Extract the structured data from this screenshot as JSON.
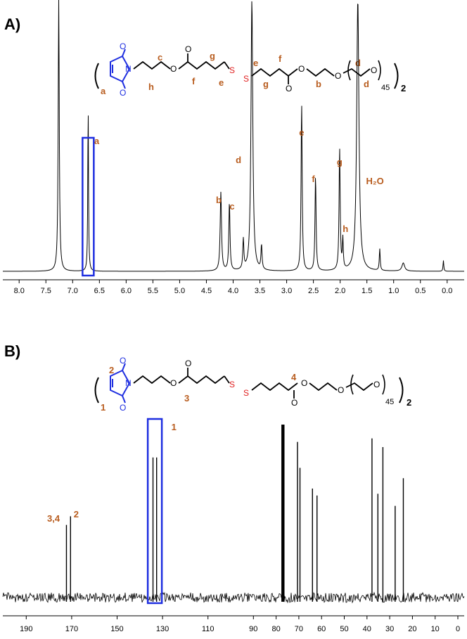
{
  "colors": {
    "spectrum": "#000000",
    "highlight_box": "#1f2fe0",
    "maleimide": "#1f2fe0",
    "disulfide": "#e01f1f",
    "annotation": "#b85c1e"
  },
  "panel_a": {
    "label": "A)",
    "structure": {
      "letters": [
        "a",
        "h",
        "c",
        "f",
        "e",
        "g",
        "e",
        "g",
        "f",
        "b",
        "d",
        "d"
      ],
      "repeat_subscript": "45",
      "dimer_subscript": "2"
    }
  },
  "panel_b": {
    "label": "B)",
    "structure": {
      "numbers": [
        "2",
        "1",
        "3",
        "4"
      ],
      "repeat_subscript": "45",
      "dimer_subscript": "2"
    }
  },
  "chart_data": [
    {
      "type": "line",
      "xlim": [
        8.2,
        -0.2
      ],
      "x_reversed": true,
      "ticks": [
        "8.0",
        "7.5",
        "7.0",
        "6.5",
        "6.0",
        "5.5",
        "5.0",
        "4.5",
        "4.0",
        "3.5",
        "3.0",
        "2.5",
        "2.0",
        "1.5",
        "1.0",
        "0.5",
        "0.0"
      ],
      "peaks": [
        {
          "x": 7.26,
          "height": 1.0,
          "width": 0.012
        },
        {
          "x": 6.71,
          "height": 0.61,
          "width": 0.008
        },
        {
          "x": 4.23,
          "height": 0.29,
          "width": 0.015
        },
        {
          "x": 4.07,
          "height": 0.25,
          "width": 0.013
        },
        {
          "x": 3.81,
          "height": 0.11,
          "width": 0.012
        },
        {
          "x": 3.65,
          "height": 1.0,
          "width": 0.02
        },
        {
          "x": 3.47,
          "height": 0.09,
          "width": 0.012
        },
        {
          "x": 2.72,
          "height": 0.62,
          "width": 0.012
        },
        {
          "x": 2.46,
          "height": 0.35,
          "width": 0.012
        },
        {
          "x": 2.01,
          "height": 0.45,
          "width": 0.012
        },
        {
          "x": 1.95,
          "height": 0.11,
          "width": 0.01
        },
        {
          "x": 1.67,
          "height": 1.0,
          "width": 0.025
        },
        {
          "x": 1.26,
          "height": 0.08,
          "width": 0.01
        },
        {
          "x": 0.82,
          "height": 0.03,
          "width": 0.03
        },
        {
          "x": 0.07,
          "height": 0.04,
          "width": 0.008
        }
      ],
      "annotations": [
        {
          "text": "a",
          "x": 6.55
        },
        {
          "text": "b",
          "x": 4.27
        },
        {
          "text": "c",
          "x": 4.02
        },
        {
          "text": "d",
          "x": 3.9
        },
        {
          "text": "e",
          "x": 2.72
        },
        {
          "text": "f",
          "x": 2.5
        },
        {
          "text": "g",
          "x": 2.01
        },
        {
          "text": "h",
          "x": 1.9
        },
        {
          "text": "H₂O",
          "x": 1.35
        }
      ]
    },
    {
      "type": "line",
      "xlim": [
        200,
        0
      ],
      "x_reversed": true,
      "ticks": [
        "190",
        "170",
        "150",
        "130",
        "110",
        "90",
        "80",
        "70",
        "60",
        "50",
        "40",
        "30",
        "20",
        "10",
        "0"
      ],
      "peaks": [
        {
          "x": 172.3,
          "height": 0.42
        },
        {
          "x": 170.5,
          "height": 0.47
        },
        {
          "x": 134.2,
          "height": 0.81
        },
        {
          "x": 132.6,
          "height": 0.81
        },
        {
          "x": 77.3,
          "height": 1.0
        },
        {
          "x": 76.7,
          "height": 1.0
        },
        {
          "x": 70.6,
          "height": 0.9
        },
        {
          "x": 69.5,
          "height": 0.75
        },
        {
          "x": 64.0,
          "height": 0.63
        },
        {
          "x": 62.0,
          "height": 0.59
        },
        {
          "x": 37.8,
          "height": 0.92
        },
        {
          "x": 35.2,
          "height": 0.6
        },
        {
          "x": 33.0,
          "height": 0.87
        },
        {
          "x": 27.6,
          "height": 0.53
        },
        {
          "x": 24.0,
          "height": 0.69
        }
      ],
      "annotations": [
        {
          "text": "3,4",
          "x": 178
        },
        {
          "text": "2",
          "x": 168
        },
        {
          "text": "1",
          "x": 125
        }
      ]
    }
  ]
}
